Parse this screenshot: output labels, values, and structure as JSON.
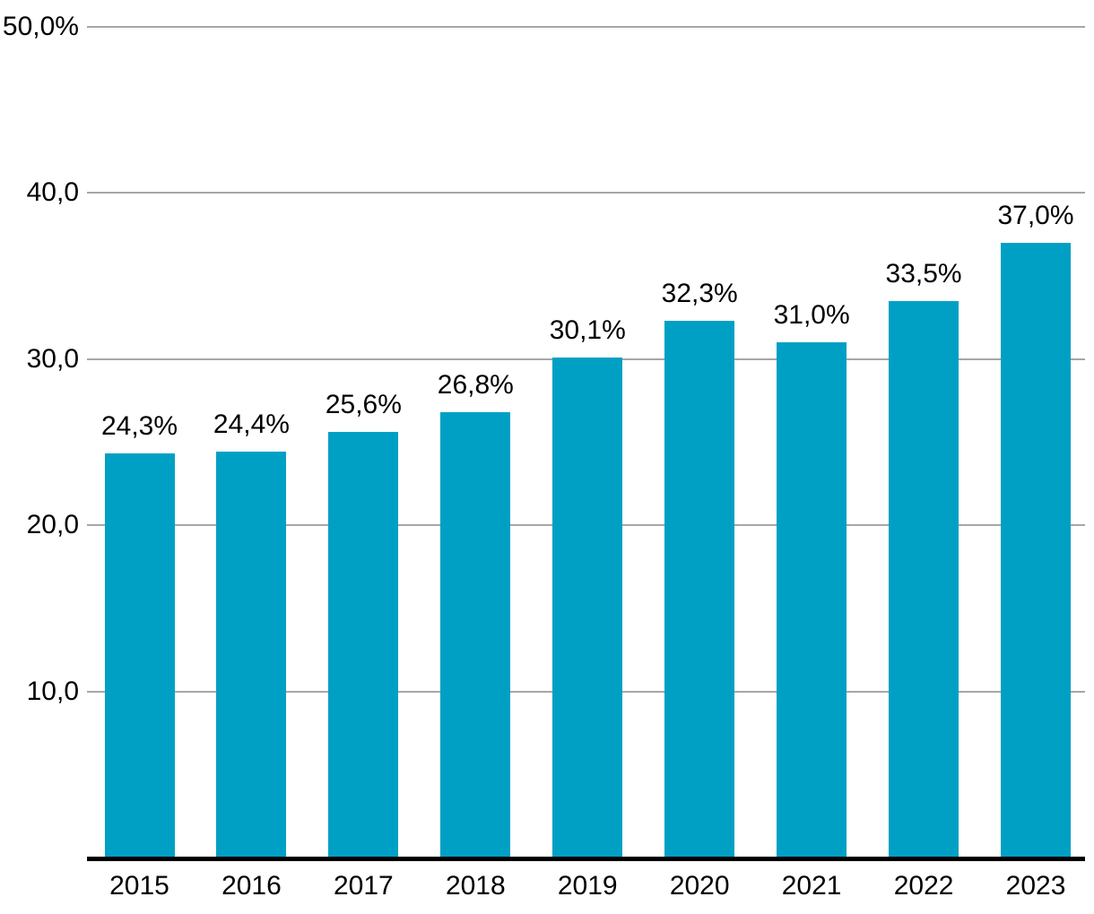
{
  "chart_data": {
    "type": "bar",
    "title": "",
    "xlabel": "",
    "ylabel": "",
    "categories": [
      "2015",
      "2016",
      "2017",
      "2018",
      "2019",
      "2020",
      "2021",
      "2022",
      "2023"
    ],
    "values": [
      24.3,
      24.4,
      25.6,
      26.8,
      30.1,
      32.3,
      31.0,
      33.5,
      37.0
    ],
    "value_labels": [
      "24,3%",
      "24,4%",
      "25,6%",
      "26,8%",
      "30,1%",
      "32,3%",
      "31,0%",
      "33,5%",
      "37,0%"
    ],
    "y_ticks": [
      {
        "value": 10,
        "label": "10,0"
      },
      {
        "value": 20,
        "label": "20,0"
      },
      {
        "value": 30,
        "label": "30,0"
      },
      {
        "value": 40,
        "label": "40,0"
      },
      {
        "value": 50,
        "label": "50,0%"
      }
    ],
    "ylim": [
      0,
      50
    ],
    "grid": true,
    "legend": false,
    "colors": {
      "bar": "#00A0C4",
      "gridline": "#A6A6A6",
      "axis_line": "#000000",
      "text": "#000000",
      "background": "#FFFFFF"
    }
  }
}
